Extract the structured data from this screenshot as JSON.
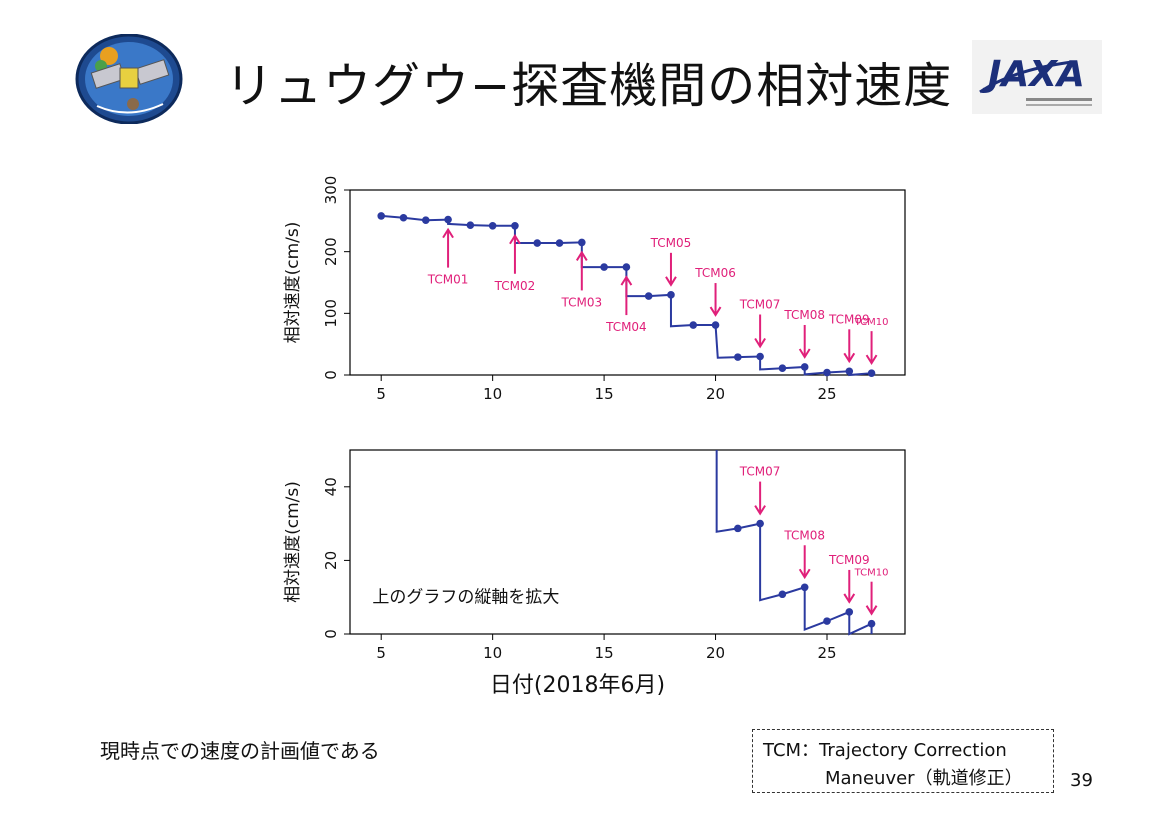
{
  "slide": {
    "title": "リュウグウ−探査機間の相対速度",
    "note": "現時点での速度の計画値である",
    "page_number": "39",
    "tcm_legend_line1": "TCM：Trajectory Correction",
    "tcm_legend_line2": "Maneuver（軌道修正）",
    "logos": [
      "hayabusa2-mission-emblem",
      "jaxa-logo"
    ],
    "jaxa_wordmark": "JAXA"
  },
  "colors": {
    "line": "#2b3aa0",
    "marker": "#2b3aa0",
    "tcm": "#e0207a"
  },
  "chart_data": [
    {
      "type": "line",
      "xlabel": "",
      "ylabel": "相対速度(cm/s)",
      "xlim": [
        3.6,
        28.5
      ],
      "ylim": [
        0,
        300
      ],
      "xticks": [
        5,
        10,
        15,
        20,
        25
      ],
      "yticks": [
        0,
        100,
        200,
        300
      ],
      "series": [
        {
          "points": [
            [
              5,
              258
            ],
            [
              6,
              255
            ],
            [
              7,
              251
            ],
            [
              8,
              252
            ],
            [
              9,
              243
            ],
            [
              10,
              242
            ],
            [
              11,
              242
            ],
            [
              12,
              214
            ],
            [
              13,
              214
            ],
            [
              14,
              215
            ],
            [
              15,
              175
            ],
            [
              16,
              175
            ],
            [
              17,
              128
            ],
            [
              18,
              130
            ],
            [
              19,
              81
            ],
            [
              20,
              81
            ],
            [
              21,
              29
            ],
            [
              22,
              30
            ],
            [
              23,
              11
            ],
            [
              24,
              13
            ],
            [
              25,
              4
            ],
            [
              26,
              6
            ],
            [
              27,
              3
            ]
          ],
          "steps": [
            [
              8,
              252,
              245
            ],
            [
              11,
              242,
              214
            ],
            [
              14,
              215,
              175
            ],
            [
              16,
              175,
              128
            ],
            [
              18,
              130,
              79
            ],
            [
              20.1,
              81,
              28
            ],
            [
              22,
              30,
              9
            ],
            [
              24,
              13,
              1
            ],
            [
              26,
              6,
              0
            ],
            [
              27,
              3,
              0
            ]
          ]
        }
      ],
      "annotations": [
        {
          "label": "TCM01",
          "x": 8,
          "dir": "up"
        },
        {
          "label": "TCM02",
          "x": 11,
          "dir": "up"
        },
        {
          "label": "TCM03",
          "x": 14,
          "dir": "up"
        },
        {
          "label": "TCM04",
          "x": 16,
          "dir": "up"
        },
        {
          "label": "TCM05",
          "x": 18,
          "dir": "down"
        },
        {
          "label": "TCM06",
          "x": 20,
          "dir": "down"
        },
        {
          "label": "TCM07",
          "x": 22,
          "dir": "down"
        },
        {
          "label": "TCM08",
          "x": 24,
          "dir": "down"
        },
        {
          "label": "TCM09",
          "x": 26,
          "dir": "down"
        },
        {
          "label": "TCM10",
          "x": 27,
          "dir": "down"
        }
      ]
    },
    {
      "type": "line",
      "xlabel": "日付(2018年6月)",
      "ylabel": "相対速度(cm/s)",
      "annotation_text": "上のグラフの縦軸を拡大",
      "xlim": [
        3.6,
        28.5
      ],
      "ylim": [
        0,
        50
      ],
      "xticks": [
        5,
        10,
        15,
        20,
        25
      ],
      "yticks": [
        0,
        20,
        40
      ],
      "series": [
        {
          "points": [
            [
              21,
              28.7
            ],
            [
              22,
              30
            ],
            [
              23,
              10.8
            ],
            [
              24,
              12.7
            ],
            [
              25,
              3.5
            ],
            [
              26,
              6
            ],
            [
              27,
              2.8
            ]
          ],
          "steps": [
            [
              20.05,
              50,
              27.8
            ],
            [
              22,
              30,
              9.2
            ],
            [
              24,
              12.7,
              1.2
            ],
            [
              26,
              6,
              0
            ],
            [
              27,
              2.8,
              0
            ]
          ]
        }
      ],
      "annotations": [
        {
          "label": "TCM07",
          "x": 22,
          "dir": "down"
        },
        {
          "label": "TCM08",
          "x": 24,
          "dir": "down"
        },
        {
          "label": "TCM09",
          "x": 26,
          "dir": "down"
        },
        {
          "label": "TCM10",
          "x": 27,
          "dir": "down"
        }
      ]
    }
  ]
}
